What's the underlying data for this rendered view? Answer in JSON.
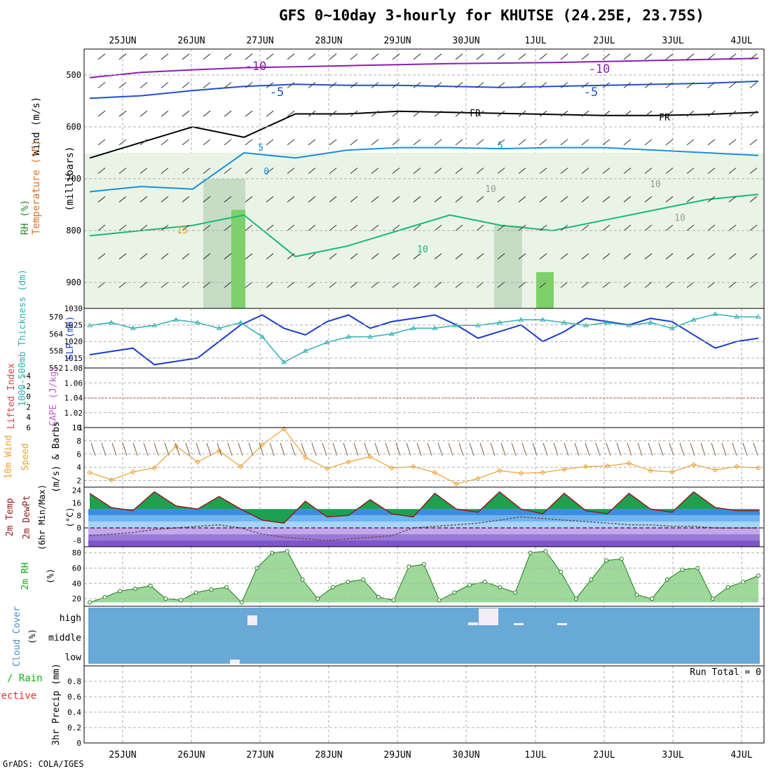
{
  "title": "GFS 0~10day 3-hourly for KHUTSE (24.25E, 23.75S)",
  "footer": "GrADS: COLA/IGES",
  "date_labels": [
    "25JUN",
    "26JUN",
    "27JUN",
    "28JUN",
    "29JUN",
    "30JUN",
    "1JUL",
    "2JUL",
    "3JUL",
    "4JUL"
  ],
  "chart_data": [
    {
      "id": "upper_air",
      "type": "heatmap",
      "title": "",
      "ylabel": "(millibars)",
      "ylabel_parts": [
        {
          "text": "Wind (m/s)",
          "color": "#000000"
        },
        {
          "text": "Temperature (°C)",
          "color": "#e07020"
        },
        {
          "text": "RH (%)",
          "color": "#2e8b2e"
        }
      ],
      "y_ticks": [
        500,
        600,
        700,
        800,
        900
      ],
      "ylim": [
        450,
        950
      ],
      "y_scale": "pressure (inverted)",
      "contour_labels": [
        "-10",
        "-10",
        "-5",
        "-5",
        "FR",
        "FR",
        "5",
        "5",
        "0",
        "10",
        "10",
        "10",
        "10",
        "15"
      ],
      "series": [
        {
          "name": "-10",
          "color": "#8a1fb0",
          "values": [
            505,
            495,
            490,
            486,
            484,
            482,
            480,
            478,
            477,
            476,
            474,
            472,
            470,
            468
          ]
        },
        {
          "name": "-5",
          "color": "#2050d0",
          "values": [
            545,
            540,
            530,
            522,
            518,
            520,
            520,
            522,
            524,
            522,
            520,
            518,
            516,
            512
          ]
        },
        {
          "name": "FR",
          "color": "#000000",
          "values": [
            660,
            630,
            600,
            620,
            575,
            575,
            570,
            572,
            574,
            576,
            578,
            578,
            576,
            572
          ]
        },
        {
          "name": "5",
          "color": "#1a90d8",
          "values": [
            725,
            715,
            720,
            650,
            660,
            645,
            640,
            640,
            642,
            640,
            640,
            645,
            650,
            655
          ]
        },
        {
          "name": "10",
          "color": "#18b878",
          "values": [
            810,
            800,
            790,
            770,
            850,
            830,
            800,
            770,
            790,
            800,
            780,
            760,
            740,
            730
          ]
        }
      ]
    },
    {
      "id": "slp_thickness",
      "type": "line",
      "title": "",
      "ylabel_left": "1000-500mb Thickness (dm)",
      "ylabel_right": "SLP (mb)",
      "y_ticks_left": [
        552,
        558,
        564,
        570
      ],
      "y_ticks_right": [
        1015,
        1020,
        1025,
        1030
      ],
      "ylim_left": [
        552,
        573
      ],
      "ylim_right": [
        1012,
        1030
      ],
      "series": [
        {
          "name": "SLP (mb)",
          "color": "#1a3cc8",
          "values": [
            1016,
            1017,
            1018,
            1013,
            1014,
            1015,
            1020,
            1025,
            1028,
            1024,
            1022,
            1026,
            1028,
            1024,
            1026,
            1027,
            1028,
            1025,
            1021,
            1023,
            1025,
            1020,
            1023,
            1027,
            1026,
            1025,
            1027,
            1026,
            1022,
            1018,
            1020,
            1021
          ]
        },
        {
          "name": "1000-500mb Thickness (dm)",
          "color": "#30b0b0",
          "values": [
            567,
            568,
            566,
            567,
            569,
            568,
            566,
            568,
            563,
            554,
            558,
            561,
            563,
            563,
            564,
            566,
            566,
            567,
            567,
            568,
            569,
            569,
            568,
            567,
            568,
            567,
            568,
            566,
            569,
            571,
            570,
            570
          ]
        }
      ]
    },
    {
      "id": "cape_li",
      "type": "line",
      "title": "",
      "ylabel_left": "Lifted Index",
      "ylabel_right": "CAPE (J/kg)",
      "y_ticks_left": [
        -4,
        -2,
        0,
        2,
        4,
        6
      ],
      "y_ticks_right": [
        1,
        1.02,
        1.04,
        1.06,
        1.08
      ],
      "ylim_right": [
        1,
        1.08
      ],
      "series": [
        {
          "name": "Lifted Index",
          "color": "#e04040",
          "values": [
            0
          ]
        }
      ]
    },
    {
      "id": "wind10m",
      "type": "line",
      "title": "",
      "ylabel": "10m Wind Speed (m/s) & Barbs",
      "y_ticks": [
        2,
        4,
        6,
        8,
        10
      ],
      "ylim": [
        1,
        10
      ],
      "series": [
        {
          "name": "Speed",
          "color": "#f0a030",
          "values": [
            3.2,
            2.1,
            3.3,
            3.9,
            7.2,
            4.8,
            6.5,
            4.1,
            7.4,
            9.8,
            5.5,
            3.8,
            4.8,
            5.6,
            3.9,
            4.1,
            3.2,
            1.5,
            2.3,
            3.5,
            3.1,
            3.2,
            3.7,
            4.1,
            4.2,
            4.6,
            3.5,
            3.3,
            4.4,
            3.6,
            4.1,
            3.9
          ]
        }
      ]
    },
    {
      "id": "temp2m",
      "type": "area",
      "title": "",
      "ylabel": "2m Temp 2m DewPt (6hr Min/Max) (°C)",
      "y_ticks": [
        -8,
        0,
        8,
        16,
        24
      ],
      "ylim": [
        -12,
        26
      ],
      "series": [
        {
          "name": "2m Temp",
          "color": "#8b2020",
          "values": [
            22,
            13,
            11,
            23,
            14,
            12,
            20,
            12,
            5,
            3,
            17,
            7,
            8,
            18,
            9,
            7,
            22,
            12,
            10,
            23,
            12,
            9,
            22,
            11,
            9,
            22,
            12,
            10,
            23,
            13,
            11,
            11
          ]
        },
        {
          "name": "2m DewPt",
          "color": "#705050",
          "values": [
            -5,
            -4,
            -3,
            -1,
            0,
            1,
            2,
            0,
            -4,
            -6,
            -7,
            -8,
            -7,
            -6,
            -5,
            0,
            1,
            2,
            3,
            5,
            7,
            6,
            5,
            4,
            3,
            2,
            2,
            1,
            1,
            0,
            0,
            0
          ]
        }
      ]
    },
    {
      "id": "rh2m",
      "type": "area",
      "title": "",
      "ylabel": "2m RH (%)",
      "y_ticks": [
        20,
        40,
        60,
        80
      ],
      "ylim": [
        10,
        88
      ],
      "series": [
        {
          "name": "2m RH",
          "color": "#00c800",
          "values": [
            15,
            22,
            30,
            33,
            37,
            20,
            18,
            28,
            32,
            35,
            15,
            60,
            80,
            82,
            45,
            20,
            35,
            42,
            45,
            22,
            18,
            62,
            65,
            18,
            28,
            38,
            42,
            35,
            28,
            80,
            82,
            55,
            20,
            45,
            70,
            72,
            25,
            20,
            45,
            58,
            60,
            20,
            35,
            42,
            50
          ]
        }
      ]
    },
    {
      "id": "cloud_cover",
      "type": "heatmap",
      "title": "",
      "ylabel": "Cloud Cover (%)",
      "y_ticks": [
        "high",
        "middle",
        "low"
      ],
      "background_color": "#68a9d8",
      "cells_color": "#f2eef8"
    },
    {
      "id": "precip",
      "type": "bar",
      "title": "",
      "ylabel": "3hr Precip (mm)",
      "ylabel_parts": [
        {
          "text": "Total / Rain",
          "color": "#10b010"
        },
        {
          "text": "Convective",
          "color": "#e03030"
        }
      ],
      "y_ticks": [
        0,
        0.2,
        0.4,
        0.6,
        0.8
      ],
      "ylim": [
        0,
        1
      ],
      "run_total_label": "Run Total = 0",
      "values": [
        0
      ]
    }
  ]
}
